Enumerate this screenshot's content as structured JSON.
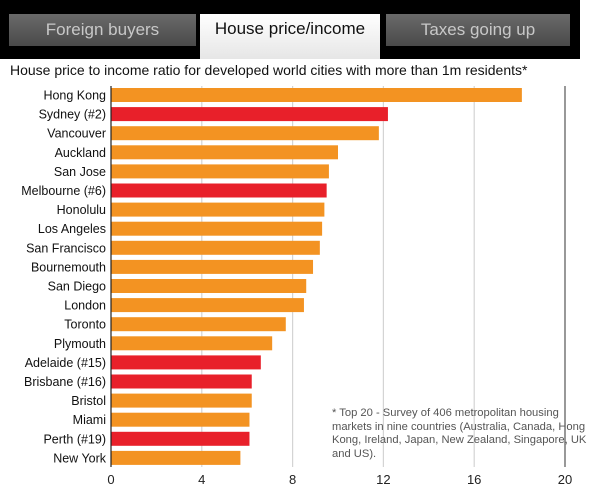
{
  "tabs": [
    {
      "label": "Foreign buyers",
      "active": false
    },
    {
      "label": "House price/income",
      "active": true
    },
    {
      "label": "Taxes going up",
      "active": false
    }
  ],
  "colors": {
    "highlight": "#e8202a",
    "default": "#f39322"
  },
  "chart_data": {
    "type": "bar",
    "orientation": "horizontal",
    "title": "House price to income ratio for developed world cities with more than 1m residents*",
    "categories": [
      "Hong Kong",
      "Sydney (#2)",
      "Vancouver",
      "Auckland",
      "San Jose",
      "Melbourne (#6)",
      "Honolulu",
      "Los Angeles",
      "San Francisco",
      "Bournemouth",
      "San Diego",
      "London",
      "Toronto",
      "Plymouth",
      "Adelaide (#15)",
      "Brisbane (#16)",
      "Bristol",
      "Miami",
      "Perth (#19)",
      "New York"
    ],
    "values": [
      18.1,
      12.2,
      11.8,
      10.0,
      9.6,
      9.5,
      9.4,
      9.3,
      9.2,
      8.9,
      8.6,
      8.5,
      7.7,
      7.1,
      6.6,
      6.2,
      6.2,
      6.1,
      6.1,
      5.7
    ],
    "highlighted": [
      false,
      true,
      false,
      false,
      false,
      true,
      false,
      false,
      false,
      false,
      false,
      false,
      false,
      false,
      true,
      true,
      false,
      false,
      true,
      false
    ],
    "xlim": [
      0,
      20
    ],
    "xticks": [
      "0",
      "4",
      "8",
      "12",
      "16",
      "20"
    ],
    "grid": true,
    "note": "* Top 20 - Survey of 406 metropolitan housing markets in nine countries (Australia, Canada, Hong Kong, Ireland, Japan, New Zealand, Singapore, UK and US)."
  }
}
